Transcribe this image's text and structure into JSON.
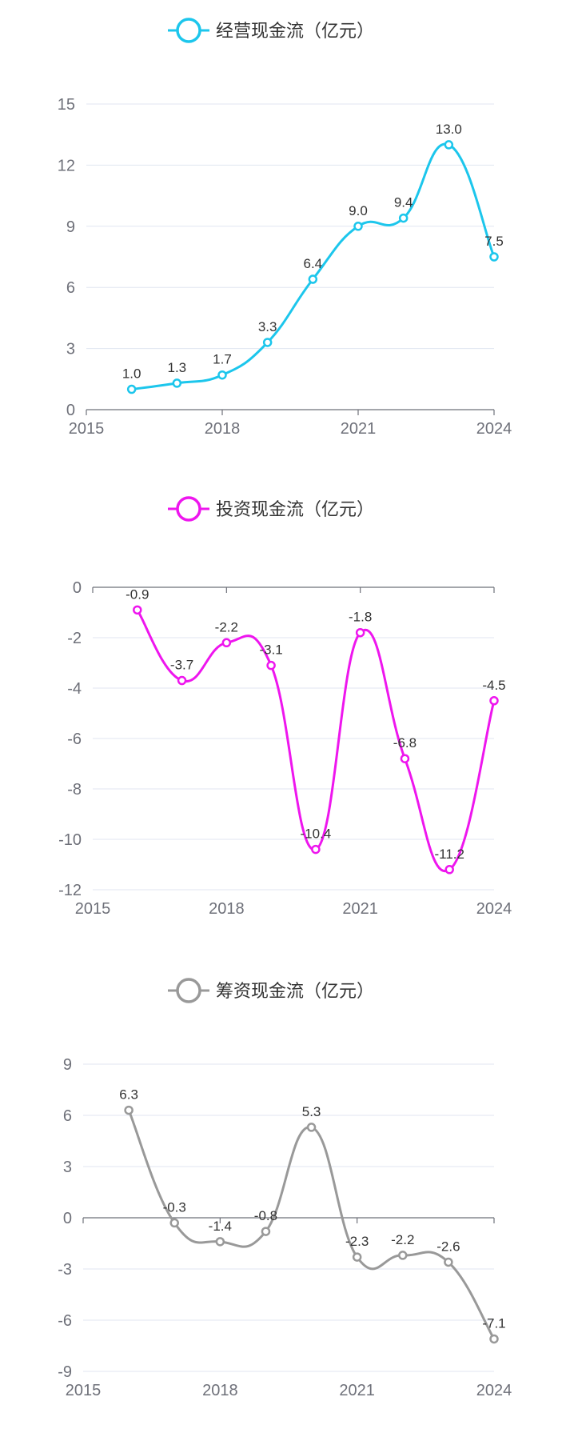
{
  "chart_data": [
    {
      "type": "line",
      "legend": "经营现金流（亿元）",
      "color": "#1cc6ec",
      "smooth": true,
      "x": [
        2016,
        2017,
        2018,
        2019,
        2020,
        2021,
        2022,
        2023,
        2024
      ],
      "values": [
        1.0,
        1.3,
        1.7,
        3.3,
        6.4,
        9.0,
        9.4,
        13.0,
        7.5
      ],
      "labels": [
        "1.0",
        "1.3",
        "1.7",
        "3.3",
        "6.4",
        "9.0",
        "9.4",
        "13.0",
        "7.5"
      ],
      "xlim": [
        2015,
        2024
      ],
      "xticks": [
        "2015",
        "2018",
        "2021",
        "2024"
      ],
      "ylim": [
        0,
        15
      ],
      "yticks": [
        "0",
        "3",
        "6",
        "9",
        "12",
        "15"
      ],
      "grid": true,
      "legend_position": "top"
    },
    {
      "type": "line",
      "legend": "投资现金流（亿元）",
      "color": "#ee16ee",
      "smooth": true,
      "x": [
        2016,
        2017,
        2018,
        2019,
        2020,
        2021,
        2022,
        2023,
        2024
      ],
      "values": [
        -0.9,
        -3.7,
        -2.2,
        -3.1,
        -10.4,
        -1.8,
        -6.8,
        -11.2,
        -4.5
      ],
      "labels": [
        "-0.9",
        "-3.7",
        "-2.2",
        "-3.1",
        "-10.4",
        "-1.8",
        "-6.8",
        "-11.2",
        "-4.5"
      ],
      "xlim": [
        2015,
        2024
      ],
      "xticks": [
        "2015",
        "2018",
        "2021",
        "2024"
      ],
      "ylim": [
        -12,
        0
      ],
      "yticks": [
        "-12",
        "-10",
        "-8",
        "-6",
        "-4",
        "-2",
        "0"
      ],
      "grid": true,
      "legend_position": "top"
    },
    {
      "type": "line",
      "legend": "筹资现金流（亿元）",
      "color": "#999999",
      "smooth": true,
      "x": [
        2016,
        2017,
        2018,
        2019,
        2020,
        2021,
        2022,
        2023,
        2024
      ],
      "values": [
        6.3,
        -0.3,
        -1.4,
        -0.8,
        5.3,
        -2.3,
        -2.2,
        -2.6,
        -7.1
      ],
      "labels": [
        "6.3",
        "-0.3",
        "-1.4",
        "-0.8",
        "5.3",
        "-2.3",
        "-2.2",
        "-2.6",
        "-7.1"
      ],
      "xlim": [
        2015,
        2024
      ],
      "xticks": [
        "2015",
        "2018",
        "2021",
        "2024"
      ],
      "ylim": [
        -9,
        9
      ],
      "yticks": [
        "-9",
        "-6",
        "-3",
        "0",
        "3",
        "6",
        "9"
      ],
      "grid": true,
      "legend_position": "top"
    }
  ]
}
